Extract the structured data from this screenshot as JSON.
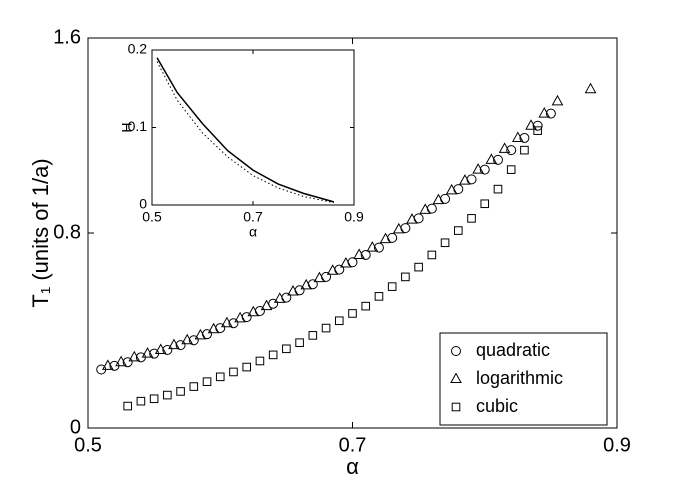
{
  "chart_data": [
    {
      "type": "scatter",
      "xlabel": "α",
      "ylabel": "T₁ (units of 1/a)",
      "xlim": [
        0.5,
        0.9
      ],
      "xticks": [
        0.5,
        0.7,
        0.9
      ],
      "ylim": [
        0,
        1.6
      ],
      "yticks": [
        0,
        0.8,
        1.6
      ],
      "legend": "lower right",
      "series": [
        {
          "name": "quadratic",
          "marker": "circle",
          "color": "#000000",
          "x": [
            0.51,
            0.52,
            0.53,
            0.54,
            0.55,
            0.56,
            0.57,
            0.58,
            0.59,
            0.6,
            0.61,
            0.62,
            0.63,
            0.64,
            0.65,
            0.66,
            0.67,
            0.68,
            0.69,
            0.7,
            0.71,
            0.72,
            0.73,
            0.74,
            0.75,
            0.76,
            0.77,
            0.78,
            0.79,
            0.8,
            0.81,
            0.82,
            0.83,
            0.84,
            0.85
          ],
          "values": [
            0.24,
            0.255,
            0.27,
            0.29,
            0.305,
            0.32,
            0.34,
            0.36,
            0.385,
            0.41,
            0.43,
            0.455,
            0.48,
            0.51,
            0.535,
            0.565,
            0.59,
            0.62,
            0.65,
            0.68,
            0.71,
            0.74,
            0.78,
            0.82,
            0.86,
            0.9,
            0.94,
            0.98,
            1.02,
            1.06,
            1.1,
            1.14,
            1.19,
            1.24,
            1.29
          ]
        },
        {
          "name": "logarithmic",
          "marker": "triangle",
          "color": "#000000",
          "x": [
            0.515,
            0.525,
            0.535,
            0.545,
            0.555,
            0.565,
            0.575,
            0.585,
            0.595,
            0.605,
            0.615,
            0.625,
            0.635,
            0.645,
            0.655,
            0.665,
            0.675,
            0.685,
            0.695,
            0.705,
            0.715,
            0.725,
            0.735,
            0.745,
            0.755,
            0.765,
            0.775,
            0.785,
            0.795,
            0.805,
            0.815,
            0.825,
            0.835,
            0.845,
            0.855,
            0.88
          ],
          "values": [
            0.255,
            0.27,
            0.29,
            0.305,
            0.32,
            0.34,
            0.36,
            0.38,
            0.405,
            0.43,
            0.45,
            0.475,
            0.5,
            0.53,
            0.56,
            0.585,
            0.615,
            0.645,
            0.675,
            0.71,
            0.74,
            0.775,
            0.815,
            0.855,
            0.895,
            0.935,
            0.975,
            1.015,
            1.06,
            1.1,
            1.145,
            1.19,
            1.24,
            1.29,
            1.34,
            1.39
          ]
        },
        {
          "name": "cubic",
          "marker": "square",
          "color": "#000000",
          "x": [
            0.53,
            0.54,
            0.55,
            0.56,
            0.57,
            0.58,
            0.59,
            0.6,
            0.61,
            0.62,
            0.63,
            0.64,
            0.65,
            0.66,
            0.67,
            0.68,
            0.69,
            0.7,
            0.71,
            0.72,
            0.73,
            0.74,
            0.75,
            0.76,
            0.77,
            0.78,
            0.79,
            0.8,
            0.81,
            0.82,
            0.83,
            0.84
          ],
          "values": [
            0.09,
            0.11,
            0.12,
            0.135,
            0.15,
            0.17,
            0.19,
            0.21,
            0.23,
            0.25,
            0.275,
            0.3,
            0.325,
            0.35,
            0.38,
            0.41,
            0.44,
            0.47,
            0.5,
            0.54,
            0.58,
            0.62,
            0.66,
            0.71,
            0.76,
            0.81,
            0.86,
            0.92,
            0.98,
            1.06,
            1.14,
            1.22
          ]
        }
      ]
    },
    {
      "type": "line",
      "xlabel": "α",
      "ylabel": "H",
      "xlim": [
        0.5,
        0.9
      ],
      "xticks": [
        0.5,
        0.7,
        0.9
      ],
      "ylim": [
        0,
        0.2
      ],
      "yticks": [
        0,
        0.1,
        0.2
      ],
      "x": [
        0.51,
        0.55,
        0.6,
        0.65,
        0.7,
        0.75,
        0.8,
        0.86
      ],
      "series": [
        {
          "style": "solid",
          "color": "#000000",
          "values": [
            0.19,
            0.145,
            0.105,
            0.07,
            0.045,
            0.027,
            0.015,
            0.004
          ]
        },
        {
          "style": "dotted",
          "color": "#000000",
          "values": [
            0.185,
            0.135,
            0.093,
            0.062,
            0.038,
            0.022,
            0.011,
            0.003
          ]
        }
      ]
    }
  ]
}
